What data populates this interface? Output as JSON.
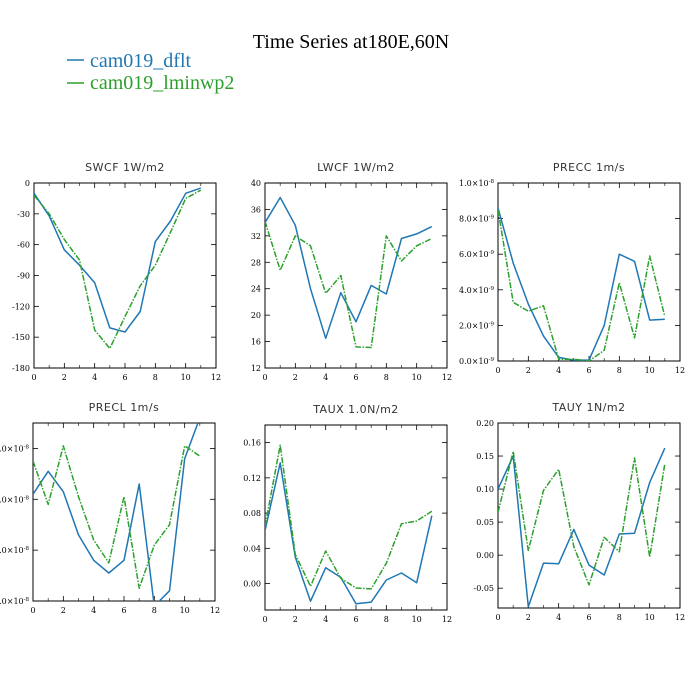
{
  "title": "Time Series at180E,60N",
  "legend": [
    {
      "label": "cam019_dflt",
      "color": "#1f77b4",
      "style": "solid"
    },
    {
      "label": "cam019_lminwp2",
      "color": "#2ca02c",
      "style": "dashdot"
    }
  ],
  "chart_data": [
    {
      "type": "line",
      "title": "SWCF   1W/m2",
      "x": [
        0,
        1,
        2,
        3,
        4,
        5,
        6,
        7,
        8,
        9,
        10,
        11
      ],
      "xlim": [
        0,
        12
      ],
      "ylim": [
        -180,
        0
      ],
      "xticks": [
        0,
        2,
        4,
        6,
        8,
        10,
        12
      ],
      "yticks": [
        -180,
        -150,
        -120,
        -90,
        -60,
        -30,
        0
      ],
      "series": [
        {
          "values": [
            -10,
            -32,
            -65,
            -80,
            -97,
            -141,
            -145,
            -125,
            -57,
            -37,
            -10,
            -5
          ],
          "color": "#1f77b4",
          "style": "solid"
        },
        {
          "values": [
            -12,
            -30,
            -55,
            -75,
            -143,
            -161,
            -130,
            -100,
            -80,
            -48,
            -15,
            -7
          ],
          "color": "#2ca02c",
          "style": "dashdot"
        }
      ]
    },
    {
      "type": "line",
      "title": "LWCF   1W/m2",
      "x": [
        0,
        1,
        2,
        3,
        4,
        5,
        6,
        7,
        8,
        9,
        10,
        11
      ],
      "xlim": [
        0,
        12
      ],
      "ylim": [
        12,
        40
      ],
      "xticks": [
        0,
        2,
        4,
        6,
        8,
        10,
        12
      ],
      "yticks": [
        12,
        16,
        20,
        24,
        28,
        32,
        36,
        40
      ],
      "series": [
        {
          "values": [
            34.0,
            37.8,
            33.6,
            24.0,
            16.5,
            23.4,
            19.0,
            24.5,
            23.2,
            31.6,
            32.3,
            33.4
          ],
          "color": "#1f77b4",
          "style": "solid"
        },
        {
          "values": [
            34.2,
            26.8,
            32.0,
            30.5,
            23.3,
            26.0,
            15.2,
            15.1,
            32.0,
            28.2,
            30.5,
            31.6
          ],
          "color": "#2ca02c",
          "style": "dashdot"
        }
      ]
    },
    {
      "type": "line",
      "title": "PRECC   1m/s",
      "x": [
        0,
        1,
        2,
        3,
        4,
        5,
        6,
        7,
        8,
        9,
        10,
        11
      ],
      "xlim": [
        0,
        12
      ],
      "ylim": [
        0,
        1e-08
      ],
      "xticks": [
        0,
        2,
        4,
        6,
        8,
        10,
        12
      ],
      "yticks": [
        0,
        2e-09,
        4e-09,
        6e-09,
        8e-09,
        1e-08
      ],
      "ytick_labels": [
        {
          "mant": "0.0×10",
          "exp": "-9"
        },
        {
          "mant": "2.0×10",
          "exp": "-9"
        },
        {
          "mant": "4.0×10",
          "exp": "-9"
        },
        {
          "mant": "6.0×10",
          "exp": "-9"
        },
        {
          "mant": "8.0×10",
          "exp": "-9"
        },
        {
          "mant": "1.0×10",
          "exp": "-8"
        }
      ],
      "series": [
        {
          "values": [
            8.6e-09,
            5.5e-09,
            3.2e-09,
            1.4e-09,
            2e-10,
            5e-11,
            5e-11,
            2e-09,
            6e-09,
            5.6e-09,
            2.3e-09,
            2.35e-09
          ],
          "color": "#1f77b4",
          "style": "solid"
        },
        {
          "values": [
            8.5e-09,
            3.3e-09,
            2.8e-09,
            3.1e-09,
            1e-10,
            1e-10,
            0.0,
            6e-10,
            4.4e-09,
            1.3e-09,
            5.9e-09,
            2.5e-09
          ],
          "color": "#2ca02c",
          "style": "dashdot"
        }
      ]
    },
    {
      "type": "line",
      "title": "PRECL   1m/s",
      "x": [
        0,
        1,
        2,
        3,
        4,
        5,
        6,
        7,
        8,
        9,
        10,
        11
      ],
      "xlim": [
        0,
        12
      ],
      "ylim": [
        1e-08,
        4.5e-08
      ],
      "xticks": [
        0,
        2,
        4,
        6,
        8,
        10,
        12
      ],
      "yticks": [
        1e-08,
        2e-08,
        3e-08,
        4e-08
      ],
      "ytick_labels": [
        {
          "mant": ".0×10",
          "exp": "-8"
        },
        {
          "mant": ".0×10",
          "exp": "-8"
        },
        {
          "mant": ".0×10",
          "exp": "-8"
        },
        {
          "mant": ".0×10",
          "exp": "-8"
        }
      ],
      "series": [
        {
          "values": [
            3.1e-08,
            3.55e-08,
            3.15e-08,
            2.3e-08,
            1.8e-08,
            1.55e-08,
            1.8e-08,
            3.3e-08,
            9e-09,
            1.2e-08,
            3.8e-08,
            4.6e-08
          ],
          "color": "#1f77b4",
          "style": "solid"
        },
        {
          "values": [
            3.75e-08,
            2.9e-08,
            4.05e-08,
            3.05e-08,
            2.2e-08,
            1.75e-08,
            3.05e-08,
            1.25e-08,
            2.1e-08,
            2.5e-08,
            4.05e-08,
            3.85e-08
          ],
          "color": "#2ca02c",
          "style": "dashdot"
        }
      ]
    },
    {
      "type": "line",
      "title": "TAUX   1.0N/m2",
      "x": [
        0,
        1,
        2,
        3,
        4,
        5,
        6,
        7,
        8,
        9,
        10,
        11
      ],
      "xlim": [
        0,
        12
      ],
      "ylim": [
        -0.03,
        0.18
      ],
      "xticks": [
        0,
        2,
        4,
        6,
        8,
        10,
        12
      ],
      "yticks": [
        0.0,
        0.04,
        0.08,
        0.12,
        0.16
      ],
      "ytick_labels_text": [
        "0.00",
        "0.04",
        "0.08",
        "0.12",
        "0.16"
      ],
      "series": [
        {
          "values": [
            0.06,
            0.137,
            0.03,
            -0.02,
            0.018,
            0.007,
            -0.023,
            -0.021,
            0.004,
            0.012,
            0.001,
            0.077
          ],
          "color": "#1f77b4",
          "style": "solid"
        },
        {
          "values": [
            0.065,
            0.157,
            0.033,
            -0.003,
            0.037,
            0.006,
            -0.005,
            -0.006,
            0.023,
            0.068,
            0.071,
            0.082
          ],
          "color": "#2ca02c",
          "style": "dashdot"
        }
      ]
    },
    {
      "type": "line",
      "title": "TAUY   1N/m2",
      "x": [
        0,
        1,
        2,
        3,
        4,
        5,
        6,
        7,
        8,
        9,
        10,
        11
      ],
      "xlim": [
        0,
        12
      ],
      "ylim": [
        -0.08,
        0.2
      ],
      "xticks": [
        0,
        2,
        4,
        6,
        8,
        10,
        12
      ],
      "yticks": [
        -0.05,
        0.0,
        0.05,
        0.1,
        0.15,
        0.2
      ],
      "ytick_labels_text": [
        "-0.05",
        "0.00",
        "0.05",
        "0.10",
        "0.15",
        "0.20"
      ],
      "series": [
        {
          "values": [
            0.1,
            0.15,
            -0.078,
            -0.012,
            -0.013,
            0.039,
            -0.015,
            -0.03,
            0.032,
            0.033,
            0.11,
            0.162
          ],
          "color": "#1f77b4",
          "style": "solid"
        },
        {
          "values": [
            0.065,
            0.157,
            0.007,
            0.098,
            0.13,
            0.013,
            -0.045,
            0.027,
            0.005,
            0.147,
            -0.003,
            0.138
          ],
          "color": "#2ca02c",
          "style": "dashdot"
        }
      ]
    }
  ]
}
